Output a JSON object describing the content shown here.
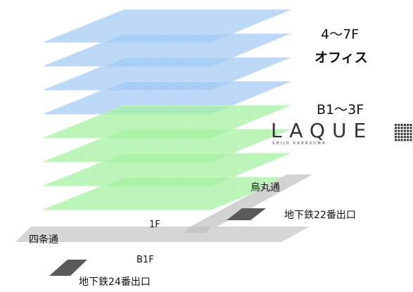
{
  "labels": {
    "upper_floors": "4～7F",
    "upper_name": "オフィス",
    "lower_floors": "B1～3F",
    "floor_1": "1F",
    "floor_b1": "B1F",
    "street_a": "烏丸通",
    "street_b": "四条通",
    "exit_a": "地下鉄22番出口",
    "exit_b": "地下鉄24番出口"
  },
  "brand": {
    "word": "LAQUE",
    "tagline": "SHIJO KARASUMA"
  },
  "colors": {
    "office_layer": "#9cc6f2",
    "office_layer_edge": "#c4dcf7",
    "retail_layer": "#9ef09a",
    "retail_layer_edge": "#c2f6bc",
    "street": "#d2d2d2",
    "subway_exit": "#5a5a5a",
    "brand": "#333333"
  },
  "layers": [
    {
      "floor": "7F",
      "kind": "office"
    },
    {
      "floor": "6F",
      "kind": "office"
    },
    {
      "floor": "5F",
      "kind": "office"
    },
    {
      "floor": "4F",
      "kind": "office"
    },
    {
      "floor": "3F",
      "kind": "retail"
    },
    {
      "floor": "2F",
      "kind": "retail"
    },
    {
      "floor": "1F",
      "kind": "retail"
    },
    {
      "floor": "B1F",
      "kind": "retail"
    }
  ]
}
